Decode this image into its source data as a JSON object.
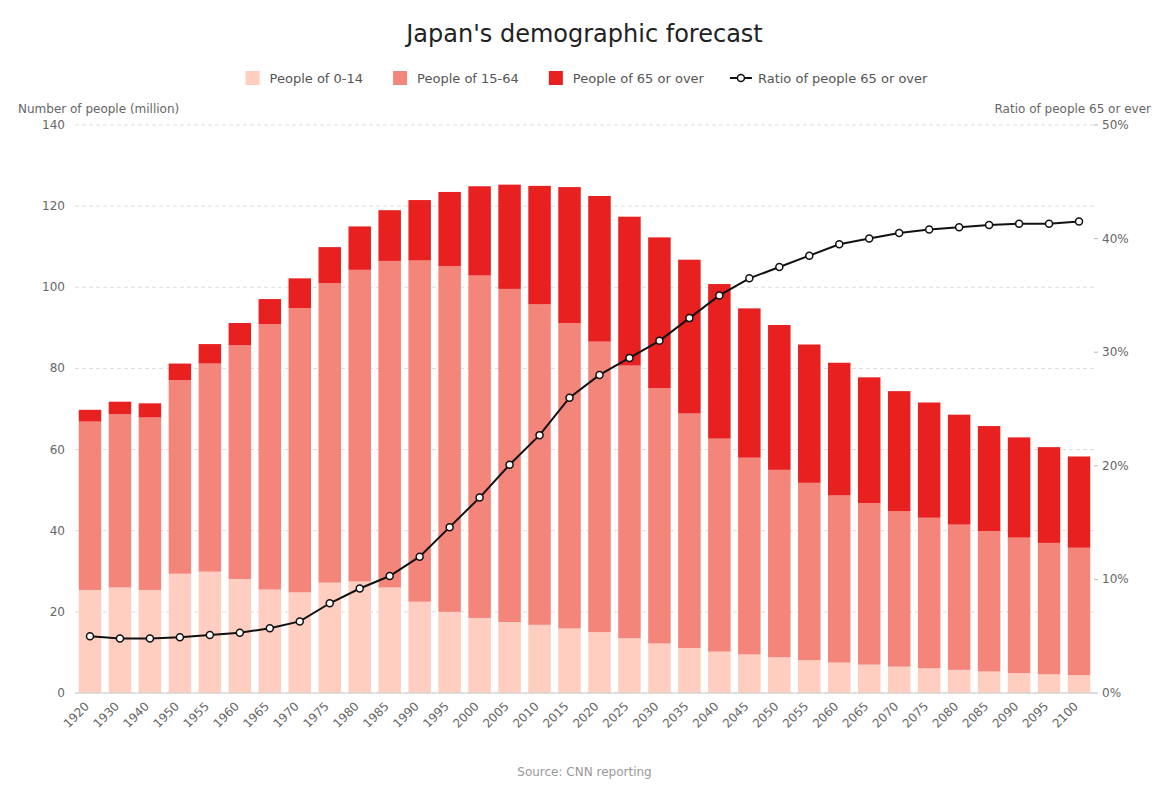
{
  "chart_data": {
    "type": "bar",
    "title": "Japan's demographic forecast",
    "ylabel": "Number of people (million)",
    "y2label": "Ratio of people 65 or ever",
    "source": "Source: CNN reporting",
    "stacked": true,
    "grid": true,
    "legend": "top",
    "categories": [
      "1920",
      "1930",
      "1940",
      "1950",
      "1955",
      "1960",
      "1965",
      "1970",
      "1975",
      "1980",
      "1985",
      "1990",
      "1995",
      "2000",
      "2005",
      "2010",
      "2015",
      "2020",
      "2025",
      "2030",
      "2035",
      "2040",
      "2045",
      "2050",
      "2055",
      "2060",
      "2065",
      "2070",
      "2075",
      "2080",
      "2085",
      "2090",
      "2095",
      "2100"
    ],
    "series": [
      {
        "name": "People of 0-14",
        "color": "#FFCEC0",
        "values": [
          25.4,
          26.0,
          25.4,
          29.4,
          29.9,
          28.1,
          25.5,
          24.8,
          27.2,
          27.5,
          26.0,
          22.5,
          20.0,
          18.5,
          17.5,
          16.8,
          15.9,
          15.0,
          13.5,
          12.2,
          11.1,
          10.2,
          9.5,
          8.8,
          8.1,
          7.5,
          7.0,
          6.5,
          6.1,
          5.7,
          5.3,
          4.9,
          4.6,
          4.4
        ]
      },
      {
        "name": "People of 15-64",
        "color": "#F4857A",
        "values": [
          41.5,
          42.7,
          42.5,
          47.7,
          51.3,
          57.6,
          65.4,
          70.1,
          73.8,
          76.8,
          80.5,
          84.1,
          85.2,
          84.4,
          82.1,
          79.0,
          75.3,
          71.6,
          67.2,
          62.9,
          57.8,
          52.5,
          48.5,
          46.2,
          43.7,
          41.2,
          39.8,
          38.3,
          37.1,
          35.8,
          34.6,
          33.4,
          32.4,
          31.4
        ]
      },
      {
        "name": "People of 65 or over",
        "color": "#E82020",
        "values": [
          2.9,
          3.1,
          3.5,
          4.1,
          4.8,
          5.5,
          6.2,
          7.3,
          8.9,
          10.7,
          12.5,
          14.9,
          18.3,
          22.0,
          25.7,
          29.2,
          33.5,
          35.9,
          36.7,
          37.2,
          37.9,
          38.1,
          36.8,
          35.7,
          34.1,
          32.7,
          31.0,
          29.6,
          28.4,
          27.1,
          25.9,
          24.7,
          23.6,
          22.5
        ]
      },
      {
        "name": "Ratio of people 65 or over",
        "type": "line",
        "axis": "y2",
        "color": "#111111",
        "marker": "circle",
        "values": [
          5.0,
          4.8,
          4.8,
          4.9,
          5.1,
          5.3,
          5.7,
          6.3,
          7.9,
          9.2,
          10.3,
          12.0,
          14.6,
          17.2,
          20.1,
          22.7,
          26.0,
          28.0,
          29.5,
          31.0,
          33.0,
          35.0,
          36.5,
          37.5,
          38.5,
          39.5,
          40.0,
          40.5,
          40.8,
          41.0,
          41.2,
          41.3,
          41.3,
          41.5
        ]
      }
    ],
    "ylim": [
      0,
      140
    ],
    "yticks": [
      0,
      20,
      40,
      60,
      80,
      100,
      120,
      140
    ],
    "y2lim": [
      0,
      50
    ],
    "y2ticks": [
      {
        "value": 0,
        "label": "0%"
      },
      {
        "value": 10,
        "label": "10%"
      },
      {
        "value": 20,
        "label": "20%"
      },
      {
        "value": 30,
        "label": "30%"
      },
      {
        "value": 40,
        "label": "40%"
      },
      {
        "value": 50,
        "label": "50%"
      }
    ]
  }
}
